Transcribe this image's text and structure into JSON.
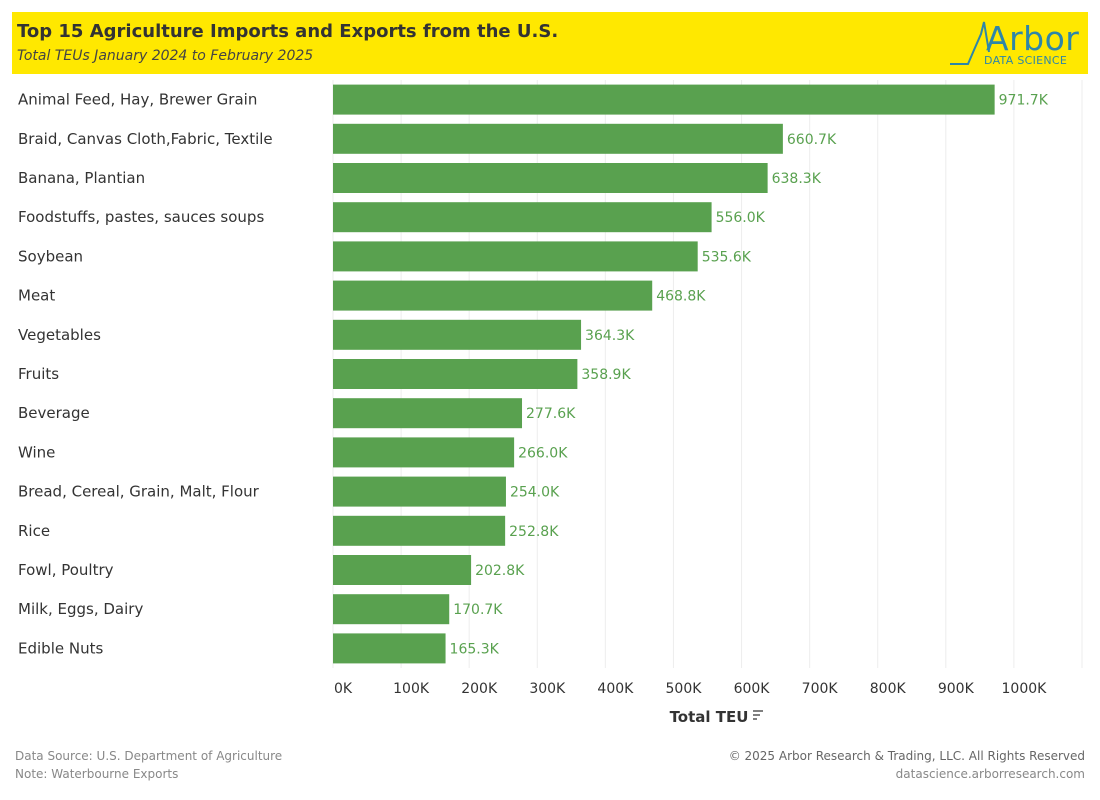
{
  "header": {
    "title": "Top 15 Agriculture Imports and Exports from the U.S.",
    "subtitle": "Total TEUs January 2024 to February 2025",
    "logo_word": "Arbor",
    "logo_sub": "DATA SCIENCE"
  },
  "colors": {
    "header_bg": "#FFE800",
    "bar": "#59A14F",
    "label": "#59A14F",
    "logo": "#2E86A8"
  },
  "chart_data": {
    "type": "bar",
    "orientation": "horizontal",
    "categories": [
      "Animal Feed, Hay, Brewer Grain",
      "Braid, Canvas Cloth,Fabric, Textile",
      "Banana, Plantian",
      "Foodstuffs, pastes, sauces soups",
      "Soybean",
      "Meat",
      "Vegetables",
      "Fruits",
      "Beverage",
      "Wine",
      "Bread, Cereal, Grain, Malt, Flour",
      "Rice",
      "Fowl, Poultry",
      "Milk, Eggs, Dairy",
      "Edible Nuts"
    ],
    "values": [
      971.7,
      660.7,
      638.3,
      556.0,
      535.6,
      468.8,
      364.3,
      358.9,
      277.6,
      266.0,
      254.0,
      252.8,
      202.8,
      170.7,
      165.3
    ],
    "value_labels": [
      "971.7K",
      "660.7K",
      "638.3K",
      "556.0K",
      "535.6K",
      "468.8K",
      "364.3K",
      "358.9K",
      "277.6K",
      "266.0K",
      "254.0K",
      "252.8K",
      "202.8K",
      "170.7K",
      "165.3K"
    ],
    "unit": "K",
    "xlim": [
      0,
      1100
    ],
    "xticks": [
      0,
      100,
      200,
      300,
      400,
      500,
      600,
      700,
      800,
      900,
      1000
    ],
    "xtick_labels": [
      "0K",
      "100K",
      "200K",
      "300K",
      "400K",
      "500K",
      "600K",
      "700K",
      "800K",
      "900K",
      "1000K"
    ],
    "xlabel": "Total TEU",
    "sort_icon": "sort-descending-icon",
    "grid": true
  },
  "footer": {
    "source": "Data Source: U.S. Department of Agriculture",
    "note": "Note: Waterbourne Exports",
    "copyright": "© 2025 Arbor Research & Trading, LLC. All Rights Reserved",
    "url": "datascience.arborresearch.com"
  }
}
